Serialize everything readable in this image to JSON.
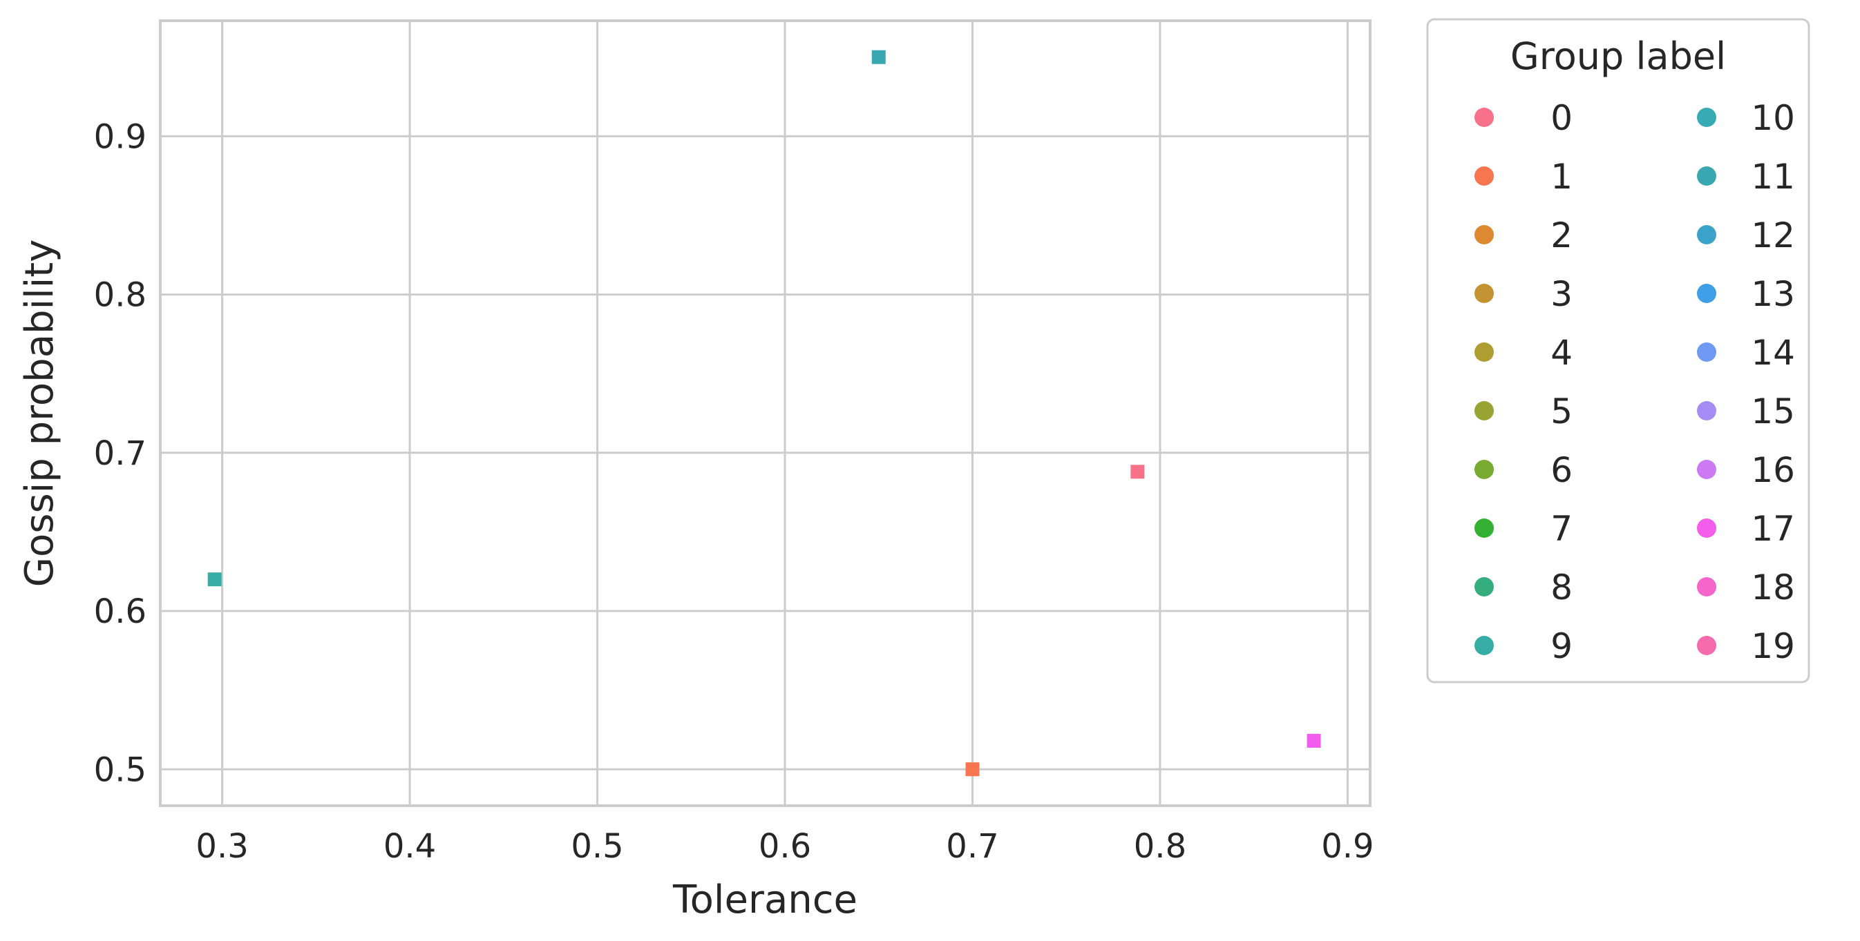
{
  "chart_data": {
    "type": "scatter",
    "title": "",
    "xlabel": "Tolerance",
    "ylabel": "Gossip probability",
    "xlim": [
      0.267,
      0.912
    ],
    "ylim": [
      0.477,
      0.973
    ],
    "xticks": [
      0.3,
      0.4,
      0.5,
      0.6,
      0.7,
      0.8,
      0.9
    ],
    "xtick_labels": [
      "0.3",
      "0.4",
      "0.5",
      "0.6",
      "0.7",
      "0.8",
      "0.9"
    ],
    "yticks": [
      0.5,
      0.6,
      0.7,
      0.8,
      0.9
    ],
    "ytick_labels": [
      "0.5",
      "0.6",
      "0.7",
      "0.8",
      "0.9"
    ],
    "grid": true,
    "marker": "square",
    "points": [
      {
        "group": "0",
        "x": 0.788,
        "y": 0.688,
        "color": "#f77189"
      },
      {
        "group": "1",
        "x": 0.7,
        "y": 0.5,
        "color": "#f7754f"
      },
      {
        "group": "9",
        "x": 0.296,
        "y": 0.62,
        "color": "#36ada4"
      },
      {
        "group": "11",
        "x": 0.65,
        "y": 0.95,
        "color": "#39a7b1"
      },
      {
        "group": "17",
        "x": 0.882,
        "y": 0.518,
        "color": "#f45deb"
      }
    ],
    "legend": {
      "title": "Group label",
      "placement": "outside-right",
      "columns": 2,
      "entries": [
        {
          "label": "0",
          "color": "#f77189"
        },
        {
          "label": "1",
          "color": "#f7754f"
        },
        {
          "label": "2",
          "color": "#dc8932"
        },
        {
          "label": "3",
          "color": "#c39332"
        },
        {
          "label": "4",
          "color": "#ae9d31"
        },
        {
          "label": "5",
          "color": "#97a431"
        },
        {
          "label": "6",
          "color": "#77ab31"
        },
        {
          "label": "7",
          "color": "#33b031"
        },
        {
          "label": "8",
          "color": "#34ae7e"
        },
        {
          "label": "9",
          "color": "#36ada4"
        },
        {
          "label": "10",
          "color": "#37abb4"
        },
        {
          "label": "11",
          "color": "#39a7b1"
        },
        {
          "label": "12",
          "color": "#3ba3ca"
        },
        {
          "label": "13",
          "color": "#3e9ee6"
        },
        {
          "label": "14",
          "color": "#6e9af4"
        },
        {
          "label": "15",
          "color": "#a48cf4"
        },
        {
          "label": "16",
          "color": "#cc7af4"
        },
        {
          "label": "17",
          "color": "#f45deb"
        },
        {
          "label": "18",
          "color": "#f565cc"
        },
        {
          "label": "19",
          "color": "#f66bad"
        }
      ]
    }
  }
}
